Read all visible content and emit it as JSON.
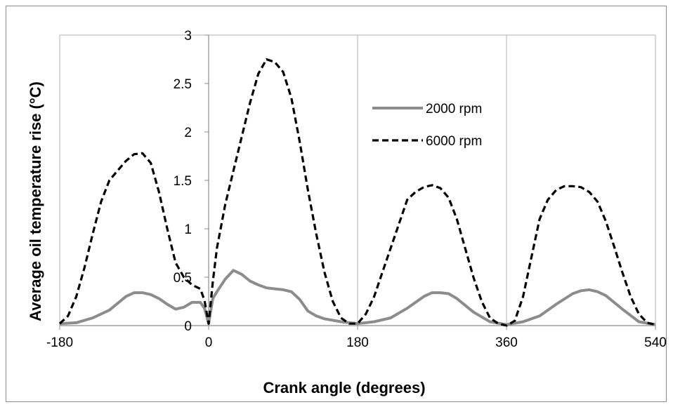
{
  "chart_data": {
    "type": "line",
    "title": "",
    "xlabel": "Crank angle (degrees)",
    "ylabel": "Average oil temperature rise (°C)",
    "xlim": [
      -180,
      540
    ],
    "ylim": [
      0,
      3
    ],
    "xticks": [
      -180,
      0,
      180,
      360,
      540
    ],
    "xtick_labels": [
      "-180",
      "0",
      "180",
      "360",
      "540"
    ],
    "yticks": [
      0,
      0.5,
      1,
      1.5,
      2,
      2.5,
      3
    ],
    "ytick_labels": [
      "0",
      "0.5",
      "1",
      "1.5",
      "2",
      "2.5",
      "3"
    ],
    "grid": {
      "vertical": true,
      "horizontal": false
    },
    "legend_position": "upper-right-inside",
    "series": [
      {
        "name": "2000 rpm",
        "color": "#8c8c8c",
        "style": "solid",
        "x": [
          -180,
          -160,
          -140,
          -120,
          -100,
          -90,
          -80,
          -70,
          -60,
          -50,
          -40,
          -30,
          -20,
          -10,
          -5,
          0,
          5,
          10,
          20,
          30,
          40,
          50,
          60,
          70,
          80,
          90,
          100,
          110,
          120,
          130,
          140,
          160,
          180,
          200,
          220,
          240,
          260,
          270,
          280,
          290,
          300,
          320,
          340,
          360,
          380,
          400,
          420,
          440,
          450,
          460,
          470,
          480,
          500,
          520,
          540
        ],
        "y": [
          0.02,
          0.03,
          0.08,
          0.16,
          0.3,
          0.34,
          0.34,
          0.32,
          0.28,
          0.22,
          0.17,
          0.19,
          0.24,
          0.24,
          0.18,
          0.02,
          0.28,
          0.35,
          0.48,
          0.57,
          0.53,
          0.46,
          0.42,
          0.39,
          0.38,
          0.37,
          0.35,
          0.27,
          0.15,
          0.1,
          0.07,
          0.04,
          0.02,
          0.04,
          0.08,
          0.18,
          0.3,
          0.34,
          0.34,
          0.33,
          0.28,
          0.14,
          0.04,
          0.01,
          0.04,
          0.1,
          0.22,
          0.33,
          0.36,
          0.37,
          0.35,
          0.31,
          0.17,
          0.04,
          0.01
        ]
      },
      {
        "name": "6000 rpm",
        "color": "#000000",
        "style": "dashed",
        "x": [
          -180,
          -170,
          -160,
          -150,
          -140,
          -130,
          -120,
          -110,
          -100,
          -90,
          -80,
          -70,
          -60,
          -50,
          -40,
          -30,
          -20,
          -10,
          -5,
          0,
          5,
          10,
          20,
          30,
          40,
          50,
          60,
          70,
          80,
          90,
          100,
          110,
          120,
          130,
          140,
          150,
          160,
          170,
          180,
          190,
          200,
          210,
          220,
          230,
          240,
          250,
          260,
          270,
          280,
          290,
          300,
          310,
          320,
          330,
          340,
          350,
          360,
          370,
          380,
          390,
          400,
          410,
          420,
          430,
          440,
          450,
          460,
          470,
          480,
          490,
          500,
          510,
          520,
          530,
          540
        ],
        "y": [
          0.02,
          0.1,
          0.3,
          0.6,
          0.95,
          1.28,
          1.5,
          1.6,
          1.7,
          1.77,
          1.78,
          1.68,
          1.38,
          1.0,
          0.65,
          0.5,
          0.42,
          0.38,
          0.26,
          0.02,
          0.45,
          0.8,
          1.25,
          1.6,
          1.95,
          2.3,
          2.6,
          2.75,
          2.72,
          2.62,
          2.35,
          1.9,
          1.4,
          0.95,
          0.55,
          0.25,
          0.08,
          0.02,
          0.02,
          0.12,
          0.3,
          0.55,
          0.8,
          1.05,
          1.3,
          1.38,
          1.43,
          1.45,
          1.42,
          1.32,
          1.1,
          0.8,
          0.5,
          0.25,
          0.08,
          0.02,
          0.0,
          0.05,
          0.3,
          0.7,
          1.1,
          1.3,
          1.4,
          1.44,
          1.44,
          1.43,
          1.38,
          1.28,
          1.08,
          0.82,
          0.55,
          0.3,
          0.12,
          0.03,
          0.01
        ]
      }
    ]
  }
}
